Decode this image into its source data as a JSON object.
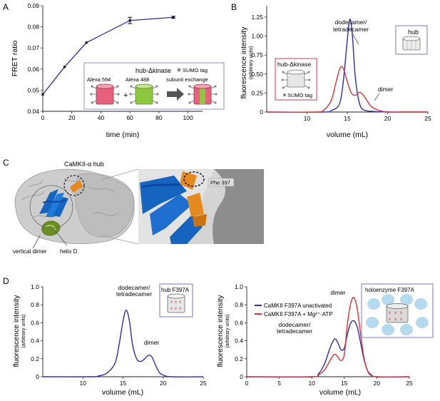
{
  "panel_labels": {
    "a": "A",
    "b": "B",
    "c": "C",
    "d": "D"
  },
  "colors": {
    "blue": "#2b2f9e",
    "red": "#e0303b",
    "pink": "#e7607e",
    "green": "#8dc63f",
    "frame": "#8a90c8",
    "redframe": "#e05a6a",
    "grey": "#7f7f7f",
    "cartoon_blue": "#1565c0",
    "orange": "#e58a1f",
    "olive": "#6b8e23"
  },
  "chart_data": [
    {
      "id": "A",
      "type": "line",
      "xlabel": "time (min)",
      "ylabel": "FRET ratio",
      "xlim": [
        0,
        110
      ],
      "ylim": [
        0.04,
        0.09
      ],
      "xticks": [
        "0",
        "20",
        "40",
        "60",
        "80",
        "100"
      ],
      "yticks": [
        "0.04",
        "0.05",
        "0.06",
        "0.07",
        "0.08",
        "0.09"
      ],
      "series": [
        {
          "x": [
            0,
            15,
            30,
            60,
            90
          ],
          "y": [
            0.048,
            0.061,
            0.0725,
            0.083,
            0.0845
          ],
          "err": [
            0,
            0,
            0,
            0.0015,
            0.0005
          ]
        }
      ],
      "inset": {
        "title": "hub-Δkinase",
        "legend": "SUMO tag",
        "label1": "Alexa 594",
        "label2": "Alexa 488",
        "label3": "subunit exchange",
        "plus": "+"
      }
    },
    {
      "id": "B",
      "type": "line",
      "xlabel": "volume (mL)",
      "ylabel": "fluorescence intensity",
      "ylabel2": "(arbitrary units)",
      "xlim": [
        5,
        25
      ],
      "ylim": [
        0,
        1.4
      ],
      "xticks": [
        "10",
        "15",
        "20",
        "25"
      ],
      "yticks": [
        "0",
        "0.25",
        "0.50",
        "0.75",
        "1.00",
        "1.25"
      ],
      "annotations": {
        "peak1a": "dodecamer/",
        "peak1b": "tetradecamer",
        "dimer": "dimer"
      },
      "series": [
        {
          "name": "hub",
          "color": "blue",
          "x": [
            5,
            12,
            13,
            14,
            14.5,
            15,
            15.3,
            15.6,
            16,
            16.5,
            17,
            18,
            20,
            25
          ],
          "y": [
            0,
            0,
            0.02,
            0.1,
            0.4,
            0.95,
            1.22,
            1.05,
            0.45,
            0.12,
            0.03,
            0.01,
            0,
            0
          ]
        },
        {
          "name": "hub-Δkinase",
          "color": "red",
          "x": [
            5,
            11,
            12,
            13,
            13.5,
            14,
            14.3,
            14.6,
            15,
            15.5,
            16,
            16.5,
            17,
            17.5,
            18,
            19,
            20,
            22,
            25
          ],
          "y": [
            0,
            0,
            0.02,
            0.15,
            0.35,
            0.55,
            0.6,
            0.55,
            0.4,
            0.25,
            0.22,
            0.26,
            0.22,
            0.14,
            0.07,
            0.02,
            0,
            0,
            0
          ]
        }
      ],
      "inset_left": {
        "title": "hub-Δkinase",
        "legend": "SUMO tag"
      },
      "inset_right": {
        "title": "hub"
      }
    },
    {
      "id": "D1",
      "type": "line",
      "xlabel": "volume (mL)",
      "ylabel": "fluorescence intensity",
      "ylabel2": "(arbitrary units)",
      "xlim": [
        5,
        25
      ],
      "ylim": [
        0,
        1.0
      ],
      "xticks": [
        "10",
        "15",
        "20",
        "25"
      ],
      "yticks": [
        "0",
        "0.2",
        "0.4",
        "0.6",
        "0.8",
        "1.0"
      ],
      "annotations": {
        "peak1a": "dodecamer/",
        "peak1b": "tetradecamer",
        "dimer": "dimer"
      },
      "series": [
        {
          "color": "blue",
          "x": [
            5,
            11,
            12,
            13,
            14,
            14.5,
            15,
            15.4,
            15.8,
            16.2,
            16.7,
            17.2,
            17.7,
            18.2,
            18.6,
            19,
            19.5,
            20,
            21,
            25
          ],
          "y": [
            0,
            0,
            0.01,
            0.04,
            0.15,
            0.35,
            0.62,
            0.74,
            0.62,
            0.35,
            0.2,
            0.17,
            0.2,
            0.24,
            0.22,
            0.14,
            0.05,
            0.02,
            0,
            0
          ]
        }
      ],
      "inset": {
        "title": "hub F397A"
      }
    },
    {
      "id": "D2",
      "type": "line",
      "xlabel": "volume (mL)",
      "ylabel": "fluorescence intensity",
      "ylabel2": "(arbitrary units)",
      "xlim": [
        0,
        25
      ],
      "ylim": [
        0,
        1.0
      ],
      "xticks": [
        "0",
        "5",
        "10",
        "15",
        "20",
        "25"
      ],
      "yticks": [
        "0",
        "0.2",
        "0.4",
        "0.6",
        "0.8",
        "1.0"
      ],
      "annotations": {
        "peak1a": "dodecamer/",
        "peak1b": "tetradecamer",
        "dimer": "dimer"
      },
      "legend": [
        "CaMKII F397A unactivated",
        "CaMKII F397A + Mg²⁺-ATP"
      ],
      "series": [
        {
          "name": "CaMKII F397A unactivated",
          "color": "blue",
          "x": [
            0,
            10,
            11,
            12,
            12.8,
            13.5,
            14,
            14.5,
            15,
            15.5,
            16,
            16.5,
            17,
            17.5,
            18,
            18.5,
            19,
            20,
            25
          ],
          "y": [
            0,
            0,
            0.03,
            0.15,
            0.32,
            0.42,
            0.38,
            0.3,
            0.32,
            0.48,
            0.6,
            0.62,
            0.55,
            0.38,
            0.2,
            0.08,
            0.03,
            0,
            0
          ]
        },
        {
          "name": "CaMKII F397A + Mg²⁺-ATP",
          "color": "red",
          "x": [
            0,
            10,
            11,
            12,
            12.8,
            13.5,
            14,
            14.5,
            15,
            15.5,
            16,
            16.5,
            17,
            17.5,
            18,
            18.5,
            19,
            20,
            25
          ],
          "y": [
            0,
            0,
            0.02,
            0.08,
            0.18,
            0.25,
            0.22,
            0.18,
            0.25,
            0.6,
            0.82,
            0.88,
            0.75,
            0.48,
            0.22,
            0.08,
            0.02,
            0,
            0
          ]
        }
      ],
      "inset": {
        "title": "holoenzyme F397A"
      }
    }
  ],
  "panel_c": {
    "title": "CaMKII-α hub",
    "vertical_dimer": "vertical dimer",
    "helix_d": "helix D",
    "phe": "Phe 397"
  }
}
